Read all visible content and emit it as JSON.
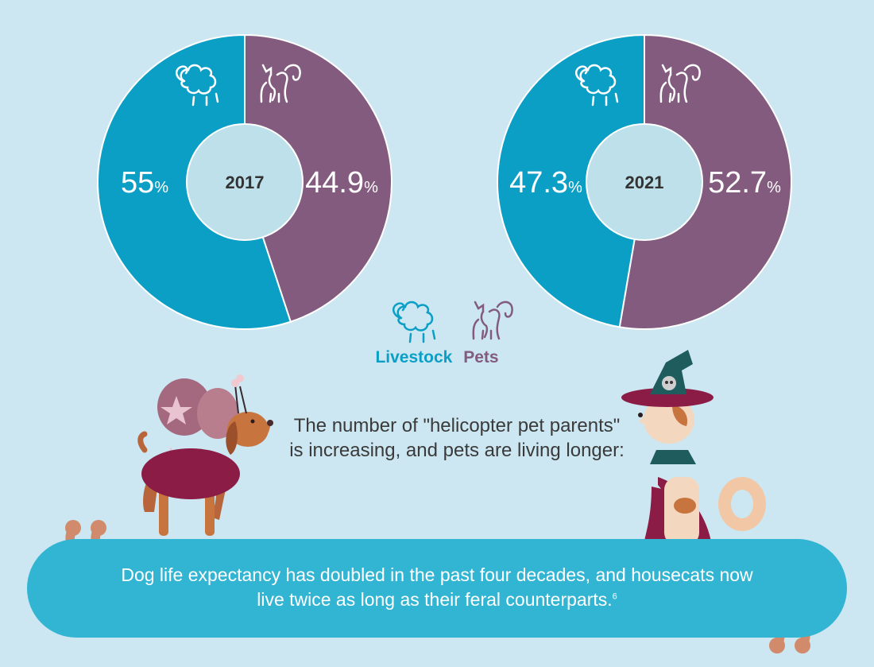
{
  "chart_data": [
    {
      "type": "pie",
      "center_label": "2017",
      "series": [
        {
          "name": "Livestock",
          "value": 55,
          "label": "55",
          "unit": "%",
          "color": "#0c9fc6"
        },
        {
          "name": "Pets",
          "value": 44.9,
          "label": "44.9",
          "unit": "%",
          "color": "#835b7e"
        }
      ]
    },
    {
      "type": "pie",
      "center_label": "2021",
      "series": [
        {
          "name": "Livestock",
          "value": 47.3,
          "label": "47.3",
          "unit": "%",
          "color": "#0c9fc6"
        },
        {
          "name": "Pets",
          "value": 52.7,
          "label": "52.7",
          "unit": "%",
          "color": "#835b7e"
        }
      ]
    }
  ],
  "legend": {
    "livestock": "Livestock",
    "pets": "Pets",
    "livestock_color": "#0c9fc6",
    "pets_color": "#835b7e"
  },
  "icons": {
    "livestock": "sheep-icon",
    "pets": "cat-icon"
  },
  "body_text": "The number of \"helicopter pet parents\" is increasing, and pets are living longer:",
  "callout": {
    "text": "Dog life expectancy has doubled in the past four decades, and housecats now live twice as long as their feral counterparts.",
    "footnote": "6"
  },
  "colors": {
    "background": "#cce7f1",
    "callout": "#32b4d3",
    "center": "#bde0ea",
    "quote": "#d18a6b"
  }
}
